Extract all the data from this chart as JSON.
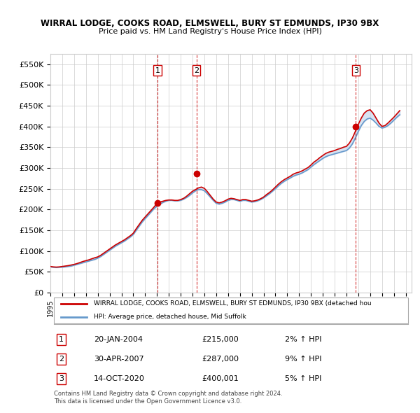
{
  "title": "WIRRAL LODGE, COOKS ROAD, ELMSWELL, BURY ST EDMUNDS, IP30 9BX",
  "subtitle": "Price paid vs. HM Land Registry's House Price Index (HPI)",
  "ylabel_ticks": [
    "£0",
    "£50K",
    "£100K",
    "£150K",
    "£200K",
    "£250K",
    "£300K",
    "£350K",
    "£400K",
    "£450K",
    "£500K",
    "£550K"
  ],
  "ytick_values": [
    0,
    50000,
    100000,
    150000,
    200000,
    250000,
    300000,
    350000,
    400000,
    450000,
    500000,
    550000
  ],
  "ylim": [
    0,
    575000
  ],
  "xlim_start": 1995.0,
  "xlim_end": 2025.5,
  "sale1_x": 2004.05,
  "sale1_y": 215000,
  "sale1_label": "1",
  "sale2_x": 2007.33,
  "sale2_y": 287000,
  "sale2_label": "2",
  "sale3_x": 2020.79,
  "sale3_y": 400001,
  "sale3_label": "3",
  "red_line_color": "#cc0000",
  "blue_line_color": "#6699cc",
  "blue_fill_color": "#c8d8ec",
  "vline_color": "#cc0000",
  "marker_color": "#cc0000",
  "grid_color": "#cccccc",
  "background_color": "#ffffff",
  "legend_label_red": "WIRRAL LODGE, COOKS ROAD, ELMSWELL, BURY ST EDMUNDS, IP30 9BX (detached hou",
  "legend_label_blue": "HPI: Average price, detached house, Mid Suffolk",
  "table_rows": [
    {
      "num": "1",
      "date": "20-JAN-2004",
      "price": "£215,000",
      "hpi": "2% ↑ HPI"
    },
    {
      "num": "2",
      "date": "30-APR-2007",
      "price": "£287,000",
      "hpi": "9% ↑ HPI"
    },
    {
      "num": "3",
      "date": "14-OCT-2020",
      "price": "£400,001",
      "hpi": "5% ↑ HPI"
    }
  ],
  "footer1": "Contains HM Land Registry data © Crown copyright and database right 2024.",
  "footer2": "This data is licensed under the Open Government Licence v3.0.",
  "hpi_years": [
    1995.0,
    1995.25,
    1995.5,
    1995.75,
    1996.0,
    1996.25,
    1996.5,
    1996.75,
    1997.0,
    1997.25,
    1997.5,
    1997.75,
    1998.0,
    1998.25,
    1998.5,
    1998.75,
    1999.0,
    1999.25,
    1999.5,
    1999.75,
    2000.0,
    2000.25,
    2000.5,
    2000.75,
    2001.0,
    2001.25,
    2001.5,
    2001.75,
    2002.0,
    2002.25,
    2002.5,
    2002.75,
    2003.0,
    2003.25,
    2003.5,
    2003.75,
    2004.0,
    2004.25,
    2004.5,
    2004.75,
    2005.0,
    2005.25,
    2005.5,
    2005.75,
    2006.0,
    2006.25,
    2006.5,
    2006.75,
    2007.0,
    2007.25,
    2007.5,
    2007.75,
    2008.0,
    2008.25,
    2008.5,
    2008.75,
    2009.0,
    2009.25,
    2009.5,
    2009.75,
    2010.0,
    2010.25,
    2010.5,
    2010.75,
    2011.0,
    2011.25,
    2011.5,
    2011.75,
    2012.0,
    2012.25,
    2012.5,
    2012.75,
    2013.0,
    2013.25,
    2013.5,
    2013.75,
    2014.0,
    2014.25,
    2014.5,
    2014.75,
    2015.0,
    2015.25,
    2015.5,
    2015.75,
    2016.0,
    2016.25,
    2016.5,
    2016.75,
    2017.0,
    2017.25,
    2017.5,
    2017.75,
    2018.0,
    2018.25,
    2018.5,
    2018.75,
    2019.0,
    2019.25,
    2019.5,
    2019.75,
    2020.0,
    2020.25,
    2020.5,
    2020.75,
    2021.0,
    2021.25,
    2021.5,
    2021.75,
    2022.0,
    2022.25,
    2022.5,
    2022.75,
    2023.0,
    2023.25,
    2023.5,
    2023.75,
    2024.0,
    2024.25,
    2024.5
  ],
  "hpi_values": [
    62000,
    61000,
    60500,
    61000,
    61500,
    62000,
    63000,
    64000,
    66000,
    68000,
    70000,
    72000,
    74000,
    76000,
    78000,
    80000,
    83000,
    87000,
    92000,
    97000,
    102000,
    107000,
    112000,
    116000,
    120000,
    124000,
    129000,
    134000,
    140000,
    150000,
    160000,
    170000,
    178000,
    186000,
    194000,
    202000,
    208000,
    213000,
    217000,
    220000,
    222000,
    222000,
    221000,
    221000,
    222000,
    225000,
    229000,
    234000,
    240000,
    245000,
    248000,
    248000,
    245000,
    238000,
    230000,
    222000,
    215000,
    213000,
    215000,
    218000,
    222000,
    224000,
    224000,
    222000,
    220000,
    222000,
    222000,
    220000,
    218000,
    219000,
    221000,
    224000,
    228000,
    233000,
    238000,
    244000,
    250000,
    257000,
    263000,
    268000,
    272000,
    276000,
    280000,
    283000,
    285000,
    288000,
    292000,
    296000,
    302000,
    308000,
    313000,
    318000,
    323000,
    327000,
    330000,
    332000,
    334000,
    336000,
    338000,
    340000,
    342000,
    348000,
    358000,
    372000,
    388000,
    402000,
    412000,
    418000,
    420000,
    415000,
    408000,
    400000,
    396000,
    398000,
    402000,
    408000,
    415000,
    422000,
    428000
  ],
  "red_line_years": [
    1995.0,
    1995.25,
    1995.5,
    1995.75,
    1996.0,
    1996.25,
    1996.5,
    1996.75,
    1997.0,
    1997.25,
    1997.5,
    1997.75,
    1998.0,
    1998.25,
    1998.5,
    1998.75,
    1999.0,
    1999.25,
    1999.5,
    1999.75,
    2000.0,
    2000.25,
    2000.5,
    2000.75,
    2001.0,
    2001.25,
    2001.5,
    2001.75,
    2002.0,
    2002.25,
    2002.5,
    2002.75,
    2003.0,
    2003.25,
    2003.5,
    2003.75,
    2004.0,
    2004.25,
    2004.5,
    2004.75,
    2005.0,
    2005.25,
    2005.5,
    2005.75,
    2006.0,
    2006.25,
    2006.5,
    2006.75,
    2007.0,
    2007.25,
    2007.5,
    2007.75,
    2008.0,
    2008.25,
    2008.5,
    2008.75,
    2009.0,
    2009.25,
    2009.5,
    2009.75,
    2010.0,
    2010.25,
    2010.5,
    2010.75,
    2011.0,
    2011.25,
    2011.5,
    2011.75,
    2012.0,
    2012.25,
    2012.5,
    2012.75,
    2013.0,
    2013.25,
    2013.5,
    2013.75,
    2014.0,
    2014.25,
    2014.5,
    2014.75,
    2015.0,
    2015.25,
    2015.5,
    2015.75,
    2016.0,
    2016.25,
    2016.5,
    2016.75,
    2017.0,
    2017.25,
    2017.5,
    2017.75,
    2018.0,
    2018.25,
    2018.5,
    2018.75,
    2019.0,
    2019.25,
    2019.5,
    2019.75,
    2020.0,
    2020.25,
    2020.5,
    2020.75,
    2021.0,
    2021.25,
    2021.5,
    2021.75,
    2022.0,
    2022.25,
    2022.5,
    2022.75,
    2023.0,
    2023.25,
    2023.5,
    2023.75,
    2024.0,
    2024.25,
    2024.5
  ],
  "red_line_values": [
    63000,
    62000,
    61500,
    62000,
    63000,
    64000,
    65000,
    66500,
    68000,
    70000,
    72500,
    75000,
    77000,
    79000,
    81500,
    84000,
    86000,
    90000,
    95000,
    100000,
    105000,
    110000,
    115000,
    119000,
    123000,
    127000,
    132000,
    137000,
    143000,
    154000,
    164000,
    174000,
    182000,
    190000,
    198000,
    206000,
    215000,
    218000,
    220000,
    222000,
    223000,
    223000,
    222000,
    222000,
    224000,
    227000,
    232000,
    238000,
    244000,
    248000,
    252000,
    254000,
    251000,
    243000,
    234000,
    225000,
    218000,
    216000,
    218000,
    221000,
    225000,
    227000,
    226000,
    224000,
    222000,
    224000,
    224000,
    222000,
    220000,
    221000,
    223000,
    226000,
    230000,
    236000,
    241000,
    247000,
    254000,
    261000,
    267000,
    272000,
    276000,
    280000,
    285000,
    288000,
    290000,
    293000,
    297000,
    301000,
    307000,
    314000,
    319000,
    325000,
    330000,
    335000,
    338000,
    340000,
    342000,
    345000,
    347000,
    350000,
    352000,
    360000,
    372000,
    388000,
    405000,
    420000,
    432000,
    438000,
    440000,
    432000,
    420000,
    408000,
    400000,
    402000,
    408000,
    415000,
    422000,
    430000,
    438000
  ]
}
